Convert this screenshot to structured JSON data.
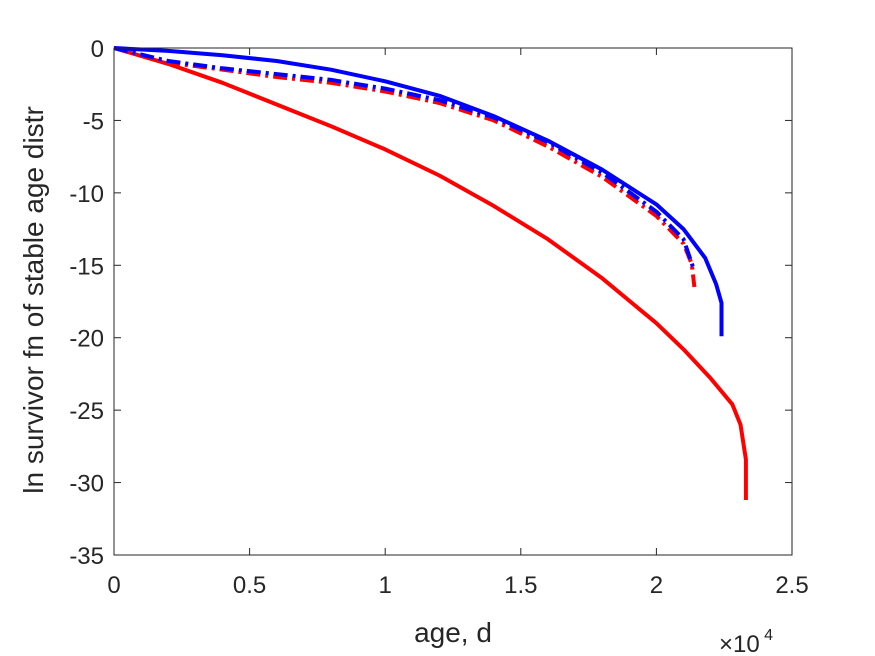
{
  "chart_data": {
    "type": "line",
    "title": "",
    "xlabel": "age, d",
    "ylabel": "ln survivor fn of stable age distr",
    "x_multiplier_label": {
      "base": "×10",
      "exponent": "4"
    },
    "xlim": [
      0,
      25000
    ],
    "ylim": [
      -35,
      0
    ],
    "x_ticks": [
      0,
      5000,
      10000,
      15000,
      20000,
      25000
    ],
    "x_tick_labels": [
      "0",
      "0.5",
      "1",
      "1.5",
      "2",
      "2.5"
    ],
    "y_ticks": [
      0,
      -5,
      -10,
      -15,
      -20,
      -25,
      -30,
      -35
    ],
    "y_tick_labels": [
      "0",
      "-5",
      "-10",
      "-15",
      "-20",
      "-25",
      "-30",
      "-35"
    ],
    "grid": false,
    "legend": "none",
    "series": [
      {
        "color": "#ff0000",
        "line_style": "solid",
        "x": [
          0,
          2000,
          4000,
          6000,
          8000,
          10000,
          12000,
          14000,
          16000,
          18000,
          20000,
          21000,
          22000,
          22800,
          23100,
          23300,
          23300
        ],
        "y": [
          0,
          -1.1,
          -2.4,
          -3.9,
          -5.4,
          -7.0,
          -8.8,
          -10.9,
          -13.2,
          -15.9,
          -19.0,
          -20.8,
          -22.8,
          -24.6,
          -26.0,
          -28.4,
          -31.2
        ]
      },
      {
        "color": "#0000ff",
        "line_style": "solid",
        "x": [
          0,
          2000,
          4000,
          6000,
          8000,
          10000,
          12000,
          14000,
          16000,
          18000,
          20000,
          21000,
          21800,
          22200,
          22400,
          22400
        ],
        "y": [
          0,
          -0.2,
          -0.5,
          -0.9,
          -1.5,
          -2.3,
          -3.3,
          -4.7,
          -6.4,
          -8.4,
          -10.8,
          -12.5,
          -14.5,
          -16.3,
          -17.6,
          -19.9
        ]
      },
      {
        "color": "#ff0000",
        "line_style": "dash-dot",
        "x": [
          0,
          2000,
          4000,
          6000,
          8000,
          10000,
          12000,
          14000,
          16000,
          18000,
          20000,
          21000,
          21300,
          21400
        ],
        "y": [
          0,
          -1.0,
          -1.5,
          -2.0,
          -2.4,
          -3.0,
          -3.8,
          -5.0,
          -6.8,
          -8.9,
          -11.6,
          -13.5,
          -14.9,
          -16.5
        ]
      },
      {
        "color": "#0000ff",
        "line_style": "dash-dot",
        "x": [
          0,
          2000,
          4000,
          6000,
          8000,
          10000,
          12000,
          14000,
          16000,
          18000,
          20000,
          21000,
          21400
        ],
        "y": [
          0,
          -0.9,
          -1.4,
          -1.8,
          -2.2,
          -2.8,
          -3.6,
          -4.8,
          -6.5,
          -8.6,
          -11.3,
          -13.2,
          -15.4
        ]
      }
    ]
  }
}
